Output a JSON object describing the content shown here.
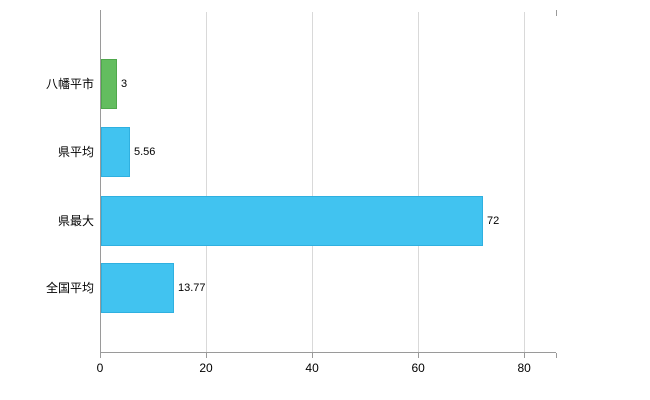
{
  "chart_data": {
    "type": "bar",
    "orientation": "horizontal",
    "title": "",
    "xlabel": "",
    "ylabel": "",
    "categories": [
      "八幡平市",
      "県平均",
      "県最大",
      "全国平均"
    ],
    "values": [
      3,
      5.56,
      72,
      13.77
    ],
    "value_labels": [
      "3",
      "5.56",
      "72",
      "13.77"
    ],
    "bar_colors": [
      {
        "fill": "#63bd5f",
        "border": "#4fa84c"
      },
      {
        "fill": "#41c3f0",
        "border": "#2fb0e0"
      },
      {
        "fill": "#41c3f0",
        "border": "#2fb0e0"
      },
      {
        "fill": "#41c3f0",
        "border": "#2fb0e0"
      }
    ],
    "x_ticks": [
      0,
      20,
      40,
      60,
      80
    ],
    "x_tick_labels": [
      "0",
      "20",
      "40",
      "60",
      "80"
    ],
    "xlim": [
      0,
      86
    ],
    "grid": true,
    "legend": false,
    "background": "#ffffff",
    "grid_color": "#d9d9d9",
    "axis_color": "#9a9a9a",
    "text_color": "#000000"
  }
}
